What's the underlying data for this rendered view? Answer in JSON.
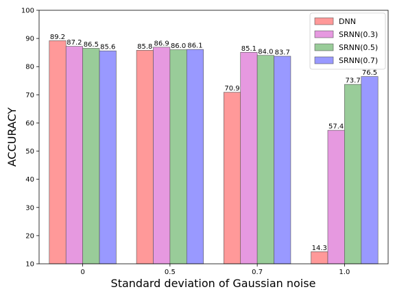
{
  "chart_data": {
    "type": "bar",
    "categories": [
      "0",
      "0.5",
      "0.7",
      "1.0"
    ],
    "series": [
      {
        "name": "DNN",
        "values": [
          89.2,
          85.8,
          70.9,
          14.3
        ],
        "color": "#ff9999"
      },
      {
        "name": "SRNN(0.3)",
        "values": [
          87.2,
          86.9,
          85.1,
          57.4
        ],
        "color": "#e699e0"
      },
      {
        "name": "SRNN(0.5)",
        "values": [
          86.5,
          86.0,
          84.0,
          73.7
        ],
        "color": "#99cc99"
      },
      {
        "name": "SRNN(0.7)",
        "values": [
          85.6,
          86.1,
          83.7,
          76.5
        ],
        "color": "#9999ff"
      }
    ],
    "data_labels": [
      [
        "89.2",
        "85.8",
        "70.9",
        "14.3"
      ],
      [
        "87.2",
        "86.9",
        "85.1",
        "57.4"
      ],
      [
        "86.5",
        "86.0",
        "84.0",
        "73.7"
      ],
      [
        "85.6",
        "86.1",
        "83.7",
        "76.5"
      ]
    ],
    "xlabel": "Standard deviation of Gaussian noise",
    "ylabel": "ACCURACY",
    "ylim": [
      10,
      100
    ],
    "yticks": [
      "10",
      "20",
      "30",
      "40",
      "50",
      "60",
      "70",
      "80",
      "90",
      "100"
    ],
    "grid": false,
    "legend_position": "top-right"
  }
}
